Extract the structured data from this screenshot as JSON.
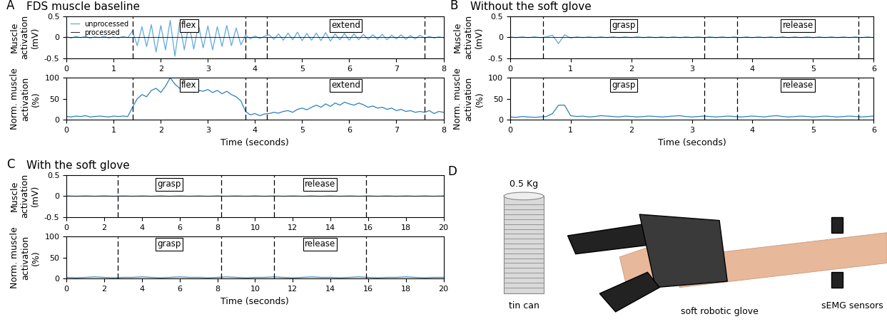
{
  "chart_data": [
    {
      "type": "line",
      "panel": "A",
      "title": "FDS muscle baseline",
      "ylabel": "Muscle\nactivation\n(mV)",
      "legend": "upper left",
      "xlim": [
        0,
        8
      ],
      "xticks": [
        0,
        1,
        2,
        3,
        4,
        5,
        6,
        7,
        8
      ],
      "ylim": [
        -0.5,
        0.5
      ],
      "yticks": [
        -0.5,
        0,
        0.5
      ],
      "grid": false,
      "phases": [
        {
          "label": "flex",
          "start": 1.4,
          "end": 3.8
        },
        {
          "label": "extend",
          "start": 4.25,
          "end": 7.6
        }
      ],
      "x": [
        0,
        0.1,
        0.2,
        0.3,
        0.4,
        0.5,
        0.6,
        0.7,
        0.8,
        0.9,
        1.0,
        1.1,
        1.2,
        1.3,
        1.4,
        1.5,
        1.6,
        1.7,
        1.8,
        1.9,
        2.0,
        2.1,
        2.2,
        2.3,
        2.4,
        2.5,
        2.6,
        2.7,
        2.8,
        2.9,
        3.0,
        3.1,
        3.2,
        3.3,
        3.4,
        3.5,
        3.6,
        3.7,
        3.8,
        3.9,
        4.0,
        4.1,
        4.2,
        4.3,
        4.4,
        4.5,
        4.6,
        4.7,
        4.8,
        4.9,
        5.0,
        5.1,
        5.2,
        5.3,
        5.4,
        5.5,
        5.6,
        5.7,
        5.8,
        5.9,
        6.0,
        6.1,
        6.2,
        6.3,
        6.4,
        6.5,
        6.6,
        6.7,
        6.8,
        6.9,
        7.0,
        7.1,
        7.2,
        7.3,
        7.4,
        7.5,
        7.6,
        7.7,
        7.8,
        7.9,
        8.0
      ],
      "series": [
        {
          "name": "unprocessed",
          "color": "#5fa8e0",
          "values": [
            0.01,
            -0.02,
            0.02,
            -0.01,
            0.02,
            -0.02,
            0.01,
            -0.01,
            0.02,
            -0.02,
            0.01,
            -0.02,
            0.02,
            -0.01,
            0.15,
            -0.2,
            0.25,
            -0.22,
            0.3,
            -0.35,
            0.28,
            -0.3,
            0.4,
            -0.45,
            0.35,
            -0.3,
            0.32,
            -0.28,
            0.3,
            -0.25,
            0.27,
            -0.3,
            0.25,
            -0.22,
            0.28,
            -0.2,
            0.22,
            -0.18,
            0.05,
            -0.04,
            0.03,
            -0.03,
            0.02,
            0.06,
            -0.05,
            0.08,
            -0.07,
            0.1,
            -0.06,
            0.12,
            -0.08,
            0.09,
            -0.07,
            0.1,
            -0.08,
            0.11,
            -0.09,
            0.08,
            -0.06,
            0.09,
            -0.07,
            0.08,
            -0.06,
            0.07,
            -0.05,
            0.06,
            -0.05,
            0.07,
            -0.06,
            0.05,
            -0.04,
            0.06,
            -0.05,
            0.04,
            -0.04,
            0.05,
            -0.02,
            0.02,
            -0.02,
            0.01,
            -0.01
          ]
        },
        {
          "name": "processed",
          "color": "#000000",
          "x": [
            0,
            8
          ],
          "values": [
            0,
            0
          ]
        }
      ]
    },
    {
      "type": "line",
      "panel": "A",
      "ylabel": "Norm. muscle\nactivation\n(%)",
      "xlabel": "Time (seconds)",
      "xlim": [
        0,
        8
      ],
      "xticks": [
        0,
        1,
        2,
        3,
        4,
        5,
        6,
        7,
        8
      ],
      "ylim": [
        0,
        100
      ],
      "yticks": [
        0,
        50,
        100
      ],
      "grid": false,
      "phases": [
        {
          "label": "flex",
          "start": 1.4,
          "end": 3.8
        },
        {
          "label": "extend",
          "start": 4.25,
          "end": 7.6
        }
      ],
      "x": [
        0,
        0.1,
        0.2,
        0.3,
        0.4,
        0.5,
        0.6,
        0.7,
        0.8,
        0.9,
        1.0,
        1.1,
        1.2,
        1.3,
        1.4,
        1.5,
        1.6,
        1.7,
        1.8,
        1.9,
        2.0,
        2.1,
        2.2,
        2.3,
        2.4,
        2.5,
        2.6,
        2.7,
        2.8,
        2.9,
        3.0,
        3.1,
        3.2,
        3.3,
        3.4,
        3.5,
        3.6,
        3.7,
        3.8,
        3.9,
        4.0,
        4.1,
        4.2,
        4.3,
        4.4,
        4.5,
        4.6,
        4.7,
        4.8,
        4.9,
        5.0,
        5.1,
        5.2,
        5.3,
        5.4,
        5.5,
        5.6,
        5.7,
        5.8,
        5.9,
        6.0,
        6.1,
        6.2,
        6.3,
        6.4,
        6.5,
        6.6,
        6.7,
        6.8,
        6.9,
        7.0,
        7.1,
        7.2,
        7.3,
        7.4,
        7.5,
        7.6,
        7.7,
        7.8,
        7.9,
        8.0
      ],
      "series": [
        {
          "color": "#2a7fc0",
          "values": [
            8,
            7,
            9,
            8,
            10,
            7,
            8,
            9,
            8,
            7,
            9,
            8,
            9,
            8,
            30,
            50,
            60,
            55,
            70,
            75,
            65,
            80,
            100,
            85,
            75,
            70,
            78,
            65,
            70,
            68,
            72,
            65,
            70,
            62,
            68,
            60,
            55,
            45,
            20,
            12,
            15,
            10,
            14,
            15,
            18,
            16,
            20,
            22,
            18,
            25,
            28,
            24,
            30,
            35,
            30,
            38,
            32,
            40,
            35,
            42,
            38,
            35,
            40,
            36,
            30,
            33,
            28,
            30,
            25,
            28,
            22,
            25,
            20,
            22,
            18,
            20,
            18,
            22,
            15,
            20,
            18
          ]
        }
      ]
    },
    {
      "type": "line",
      "panel": "B",
      "title": "Without the soft glove",
      "ylabel": "Muscle\nactivation\n(mV)",
      "xlim": [
        0,
        6
      ],
      "xticks": [
        0,
        1,
        2,
        3,
        4,
        5,
        6
      ],
      "ylim": [
        -0.5,
        0.5
      ],
      "yticks": [
        -0.5,
        0,
        0.5
      ],
      "grid": false,
      "phases": [
        {
          "label": "grasp",
          "start": 0.55,
          "end": 3.2
        },
        {
          "label": "release",
          "start": 3.75,
          "end": 5.75
        }
      ],
      "x": [
        0,
        0.1,
        0.2,
        0.3,
        0.4,
        0.5,
        0.6,
        0.7,
        0.8,
        0.9,
        1.0,
        1.1,
        1.2,
        1.3,
        1.4,
        1.5,
        1.6,
        1.7,
        1.8,
        1.9,
        2.0,
        2.1,
        2.2,
        2.3,
        2.4,
        2.5,
        2.6,
        2.7,
        2.8,
        2.9,
        3.0,
        3.1,
        3.2,
        3.3,
        3.4,
        3.5,
        3.6,
        3.7,
        3.8,
        3.9,
        4.0,
        4.1,
        4.2,
        4.3,
        4.4,
        4.5,
        4.6,
        4.7,
        4.8,
        4.9,
        5.0,
        5.1,
        5.2,
        5.3,
        5.4,
        5.5,
        5.6,
        5.7,
        5.8,
        5.9,
        6.0
      ],
      "series": [
        {
          "name": "unprocessed",
          "color": "#5fa8e0",
          "values": [
            0.01,
            -0.01,
            0.01,
            -0.01,
            0.01,
            -0.01,
            0.01,
            0.05,
            -0.15,
            0.06,
            -0.02,
            0.01,
            -0.01,
            0.01,
            -0.01,
            0.01,
            -0.01,
            0.01,
            -0.01,
            0.01,
            -0.01,
            0.01,
            -0.01,
            0.01,
            -0.01,
            0.01,
            -0.01,
            0.01,
            -0.01,
            0.01,
            -0.01,
            0.01,
            -0.01,
            0.01,
            -0.01,
            0.01,
            -0.01,
            0.01,
            -0.01,
            0.01,
            -0.01,
            0.01,
            -0.01,
            0.01,
            -0.01,
            0.01,
            -0.01,
            0.01,
            -0.01,
            0.01,
            -0.01,
            0.01,
            -0.01,
            0.01,
            -0.01,
            0.01,
            -0.01,
            0.01,
            -0.01,
            0.01,
            -0.01
          ]
        },
        {
          "name": "processed",
          "color": "#000000",
          "x": [
            0,
            6
          ],
          "values": [
            0,
            0
          ]
        }
      ]
    },
    {
      "type": "line",
      "panel": "B",
      "ylabel": "Norm. muscle\nactivation\n(%)",
      "xlabel": "Time (seconds)",
      "xlim": [
        0,
        6
      ],
      "xticks": [
        0,
        1,
        2,
        3,
        4,
        5,
        6
      ],
      "ylim": [
        0,
        100
      ],
      "yticks": [
        0,
        50,
        100
      ],
      "grid": false,
      "phases": [
        {
          "label": "grasp",
          "start": 0.55,
          "end": 3.2
        },
        {
          "label": "release",
          "start": 3.75,
          "end": 5.75
        }
      ],
      "x": [
        0,
        0.1,
        0.2,
        0.3,
        0.4,
        0.5,
        0.6,
        0.7,
        0.8,
        0.9,
        1.0,
        1.1,
        1.2,
        1.3,
        1.4,
        1.5,
        1.6,
        1.7,
        1.8,
        1.9,
        2.0,
        2.1,
        2.2,
        2.3,
        2.4,
        2.5,
        2.6,
        2.7,
        2.8,
        2.9,
        3.0,
        3.1,
        3.2,
        3.3,
        3.4,
        3.5,
        3.6,
        3.7,
        3.8,
        3.9,
        4.0,
        4.1,
        4.2,
        4.3,
        4.4,
        4.5,
        4.6,
        4.7,
        4.8,
        4.9,
        5.0,
        5.1,
        5.2,
        5.3,
        5.4,
        5.5,
        5.6,
        5.7,
        5.8,
        5.9,
        6.0
      ],
      "series": [
        {
          "color": "#2a7fc0",
          "values": [
            7,
            6,
            8,
            7,
            6,
            7,
            8,
            15,
            35,
            35,
            10,
            8,
            9,
            7,
            8,
            10,
            9,
            8,
            7,
            9,
            8,
            7,
            8,
            9,
            8,
            7,
            8,
            9,
            10,
            8,
            7,
            8,
            9,
            8,
            7,
            8,
            9,
            8,
            7,
            8,
            9,
            8,
            7,
            9,
            10,
            8,
            7,
            8,
            9,
            8,
            7,
            8,
            9,
            8,
            7,
            8,
            9,
            8,
            7,
            8,
            9
          ]
        }
      ]
    },
    {
      "type": "line",
      "panel": "C",
      "title": "With the soft glove",
      "ylabel": "Muscle\nactivation\n(mV)",
      "xlim": [
        0,
        20
      ],
      "xticks": [
        0,
        2,
        4,
        6,
        8,
        10,
        12,
        14,
        16,
        18,
        20
      ],
      "ylim": [
        -0.5,
        0.5
      ],
      "yticks": [
        -0.5,
        0,
        0.5
      ],
      "grid": false,
      "phases": [
        {
          "label": "grasp",
          "start": 2.7,
          "end": 8.2
        },
        {
          "label": "release",
          "start": 11,
          "end": 15.9
        }
      ],
      "x": [
        0,
        0.5,
        1,
        1.5,
        2,
        2.5,
        3,
        3.5,
        4,
        4.5,
        5,
        5.5,
        6,
        6.5,
        7,
        7.5,
        8,
        8.5,
        9,
        9.5,
        10,
        10.5,
        11,
        11.5,
        12,
        12.5,
        13,
        13.5,
        14,
        14.5,
        15,
        15.5,
        16,
        16.5,
        17,
        17.5,
        18,
        18.5,
        19,
        19.5,
        20
      ],
      "series": [
        {
          "name": "unprocessed",
          "color": "#5fa8e0",
          "values": [
            0.005,
            -0.005,
            0.005,
            -0.005,
            0.005,
            -0.005,
            0.005,
            -0.005,
            0.005,
            -0.005,
            0.005,
            -0.005,
            0.005,
            -0.005,
            0.005,
            -0.005,
            0.005,
            -0.005,
            0.005,
            -0.005,
            0.005,
            -0.005,
            0.005,
            -0.005,
            0.005,
            -0.005,
            0.005,
            -0.005,
            0.005,
            -0.005,
            0.005,
            -0.005,
            0.005,
            -0.005,
            0.005,
            -0.005,
            0.005,
            -0.005,
            0.005,
            -0.005,
            0.005
          ]
        },
        {
          "name": "processed",
          "color": "#000000",
          "x": [
            0,
            20
          ],
          "values": [
            0,
            0
          ]
        }
      ]
    },
    {
      "type": "line",
      "panel": "C",
      "ylabel": "Norm. muscle\nactivation\n(%)",
      "xlabel": "Time (seconds)",
      "xlim": [
        0,
        20
      ],
      "xticks": [
        0,
        2,
        4,
        6,
        8,
        10,
        12,
        14,
        16,
        18,
        20
      ],
      "ylim": [
        0,
        100
      ],
      "yticks": [
        0,
        50,
        100
      ],
      "grid": false,
      "phases": [
        {
          "label": "grasp",
          "start": 2.7,
          "end": 8.2
        },
        {
          "label": "release",
          "start": 11,
          "end": 15.9
        }
      ],
      "x": [
        0,
        0.5,
        1,
        1.5,
        2,
        2.5,
        3,
        3.5,
        4,
        4.5,
        5,
        5.5,
        6,
        6.5,
        7,
        7.5,
        8,
        8.5,
        9,
        9.5,
        10,
        10.5,
        11,
        11.5,
        12,
        12.5,
        13,
        13.5,
        14,
        14.5,
        15,
        15.5,
        16,
        16.5,
        17,
        17.5,
        18,
        18.5,
        19,
        19.5,
        20
      ],
      "series": [
        {
          "color": "#2a7fc0",
          "values": [
            3,
            2,
            3,
            4,
            3,
            2,
            3,
            3,
            4,
            3,
            2,
            3,
            4,
            3,
            3,
            2,
            3,
            4,
            3,
            2,
            3,
            3,
            4,
            3,
            2,
            3,
            4,
            3,
            3,
            2,
            3,
            4,
            3,
            2,
            3,
            3,
            4,
            3,
            2,
            3,
            3
          ]
        }
      ]
    }
  ],
  "photo": {
    "panel": "D",
    "can_weight": "0.5 Kg",
    "can_label": "tin can",
    "glove_label": "soft robotic glove",
    "sensor_label": "sEMG sensors"
  }
}
